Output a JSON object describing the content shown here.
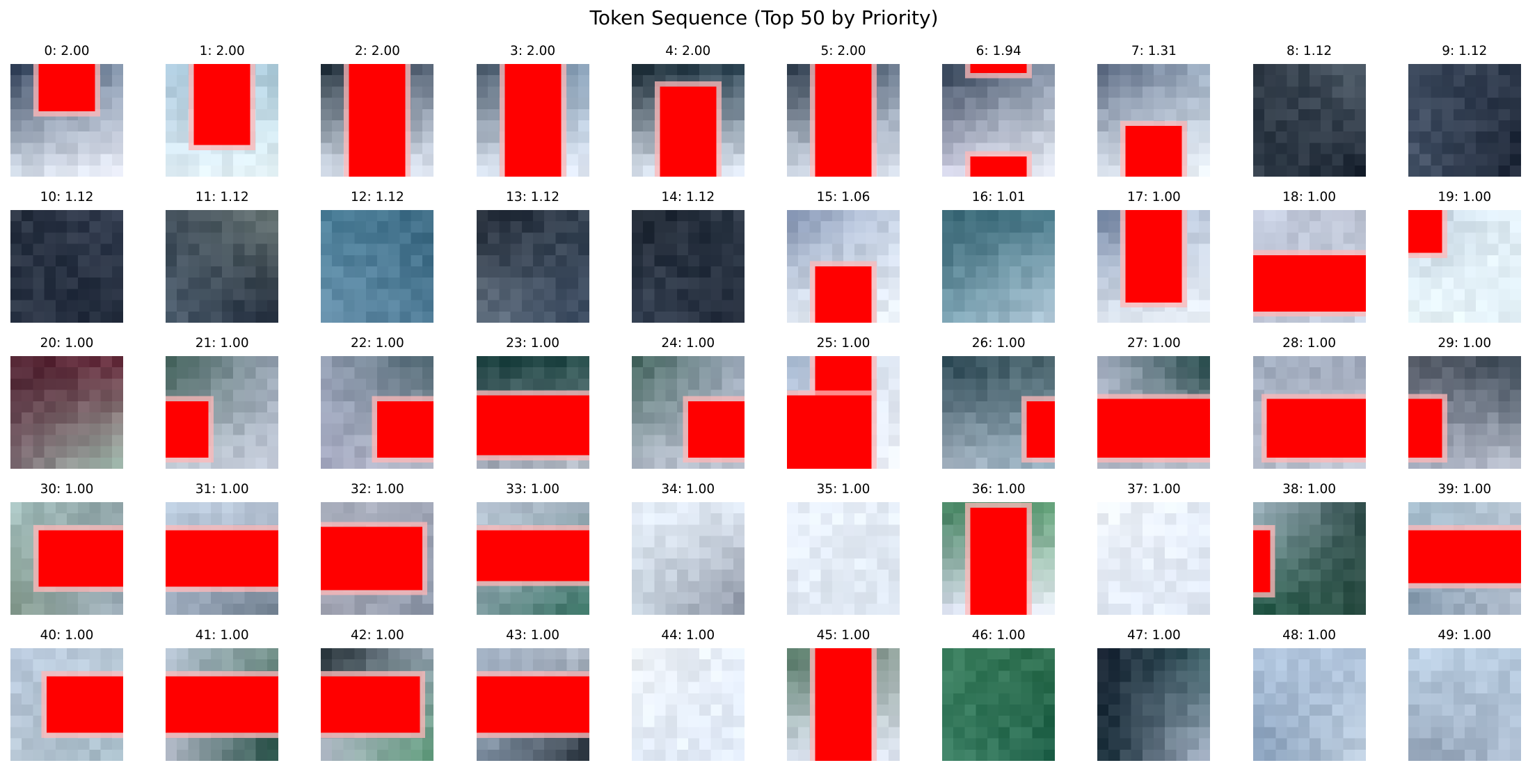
{
  "figure": {
    "title": "Token Sequence (Top 50 by Priority)"
  },
  "tokens": [
    {
      "label": "0: 2.00",
      "bg": [
        "#2f3e57",
        "#7d8fa6",
        "#d8e2ee",
        "#eef0fa"
      ],
      "overlay": [
        [
          0.25,
          0,
          0.75,
          0.42
        ]
      ]
    },
    {
      "label": "1: 2.00",
      "bg": [
        "#a8c6da",
        "#a8c8d8",
        "#e0eef6",
        "#eaf8fb"
      ],
      "overlay": [
        [
          0.25,
          0,
          0.75,
          0.72
        ]
      ]
    },
    {
      "label": "2: 2.00",
      "bg": [
        "#1c2a35",
        "#59677a",
        "#dde6f3",
        "#e7eefa"
      ],
      "overlay": [
        [
          0.25,
          0,
          0.75,
          1
        ]
      ]
    },
    {
      "label": "3: 2.00",
      "bg": [
        "#3b4b5c",
        "#8fa8c0",
        "#dde6f3",
        "#e7eefa"
      ],
      "overlay": [
        [
          0.25,
          0,
          0.75,
          1
        ]
      ]
    },
    {
      "label": "4: 2.00",
      "bg": [
        "#15252f",
        "#2e4656",
        "#dbe4f0",
        "#e7eefa"
      ],
      "overlay": [
        [
          0.25,
          0.2,
          0.75,
          1
        ]
      ]
    },
    {
      "label": "5: 2.00",
      "bg": [
        "#223040",
        "#6c7c90",
        "#dde6f3",
        "#e7eefa"
      ],
      "overlay": [
        [
          0.25,
          0,
          0.75,
          1
        ]
      ]
    },
    {
      "label": "6: 1.94",
      "bg": [
        "#2a3a4e",
        "#8896ab",
        "#dcdcf0",
        "#eef2fa"
      ],
      "overlay": [
        [
          0.25,
          0,
          0.75,
          0.08
        ],
        [
          0.25,
          0.82,
          0.75,
          1
        ]
      ]
    },
    {
      "label": "7: 1.31",
      "bg": [
        "#56657e",
        "#9eafc4",
        "#e0e8f3",
        "#eef4fa"
      ],
      "overlay": [
        [
          0.25,
          0.55,
          0.75,
          1
        ]
      ]
    },
    {
      "label": "8: 1.12",
      "bg": [
        "#2a3440",
        "#54626f",
        "#2f3b48",
        "#1a2330"
      ],
      "overlay": []
    },
    {
      "label": "9: 1.12",
      "bg": [
        "#3f4c60",
        "#2c3749",
        "#48566b",
        "#1d2636"
      ],
      "overlay": []
    },
    {
      "label": "10: 1.12",
      "bg": [
        "#27303f",
        "#353f52",
        "#2b3546",
        "#1f2838"
      ],
      "overlay": []
    },
    {
      "label": "11: 1.12",
      "bg": [
        "#3b4854",
        "#6c7a78",
        "#4f6070",
        "#1c2636"
      ],
      "overlay": []
    },
    {
      "label": "12: 1.12",
      "bg": [
        "#4a7e98",
        "#3c6a83",
        "#6c95b0",
        "#4d7a95"
      ],
      "overlay": []
    },
    {
      "label": "13: 1.12",
      "bg": [
        "#1c2430",
        "#374453",
        "#6b7a8a",
        "#3a4a60"
      ],
      "overlay": []
    },
    {
      "label": "14: 1.12",
      "bg": [
        "#1d2530",
        "#2b3645",
        "#3a4658",
        "#222b3a"
      ],
      "overlay": []
    },
    {
      "label": "15: 1.06",
      "bg": [
        "#8091b0",
        "#c8d4e6",
        "#e6eef8",
        "#eef4fb"
      ],
      "overlay": [
        [
          0.25,
          0.5,
          0.75,
          1
        ]
      ]
    },
    {
      "label": "16: 1.01",
      "bg": [
        "#2f5d6b",
        "#4c7e8e",
        "#7aa2b2",
        "#b8cede"
      ],
      "overlay": []
    },
    {
      "label": "17: 1.00",
      "bg": [
        "#6c7f9e",
        "#c4d0e2",
        "#e4ecf6",
        "#eef4fb"
      ],
      "overlay": [
        [
          0.25,
          0,
          0.75,
          0.82
        ]
      ]
    },
    {
      "label": "18: 1.00",
      "bg": [
        "#c7cfe2",
        "#b9bfcf",
        "#bcc2d2",
        "#c9d4e4"
      ],
      "overlay": [
        [
          0,
          0.4,
          1,
          0.9
        ]
      ]
    },
    {
      "label": "19: 1.00",
      "bg": [
        "#bfd0df",
        "#e3f0f7",
        "#eaf6fa",
        "#e5f3fa"
      ],
      "overlay": [
        [
          0,
          0,
          0.3,
          0.38
        ]
      ]
    },
    {
      "label": "20: 1.00",
      "bg": [
        "#4c1d2c",
        "#66293a",
        "#7e6c74",
        "#a6c4b6"
      ],
      "overlay": []
    },
    {
      "label": "21: 1.00",
      "bg": [
        "#36574f",
        "#9aa6b6",
        "#c9d1dd",
        "#c1c8d6"
      ],
      "overlay": [
        [
          0,
          0.4,
          0.38,
          0.9
        ]
      ]
    },
    {
      "label": "22: 1.00",
      "bg": [
        "#99a4b8",
        "#445d68",
        "#a4a8c0",
        "#c2c6d4"
      ],
      "overlay": [
        [
          0.5,
          0.4,
          1,
          0.9
        ]
      ]
    },
    {
      "label": "23: 1.00",
      "bg": [
        "#163c3b",
        "#1f4744",
        "#a4a9b8",
        "#c1c7d2"
      ],
      "overlay": [
        [
          0,
          0.35,
          1,
          0.88
        ]
      ]
    },
    {
      "label": "24: 1.00",
      "bg": [
        "#3e6158",
        "#99a6b8",
        "#b3bcca",
        "#c5cbd8"
      ],
      "overlay": [
        [
          0.5,
          0.4,
          1,
          0.9
        ]
      ]
    },
    {
      "label": "25: 1.00",
      "bg": [
        "#a3b6cf",
        "#e0e8f3",
        "#e8eefb",
        "#eef2fa"
      ],
      "overlay": [
        [
          0.25,
          0,
          0.75,
          0.35
        ],
        [
          0,
          0.35,
          0.75,
          1
        ]
      ]
    },
    {
      "label": "26: 1.00",
      "bg": [
        "#23404c",
        "#4e6870",
        "#a7b5c3",
        "#9ab4c4"
      ],
      "overlay": [
        [
          0.75,
          0.4,
          1,
          0.9
        ]
      ]
    },
    {
      "label": "27: 1.00",
      "bg": [
        "#aeb8cb",
        "#1a4040",
        "#a7adbc",
        "#c2c8d4"
      ],
      "overlay": [
        [
          0,
          0.38,
          1,
          0.9
        ]
      ]
    },
    {
      "label": "28: 1.00",
      "bg": [
        "#a2aec0",
        "#a0a9bc",
        "#b5bccb",
        "#c4cad6"
      ],
      "overlay": [
        [
          0.12,
          0.38,
          1,
          0.9
        ]
      ]
    },
    {
      "label": "29: 1.00",
      "bg": [
        "#575c68",
        "#313f4c",
        "#a9b0c2",
        "#c0c6d4"
      ],
      "overlay": [
        [
          0,
          0.38,
          0.3,
          0.9
        ]
      ]
    },
    {
      "label": "30: 1.00",
      "bg": [
        "#a6c2c0",
        "#8ea2a5",
        "#869c8e",
        "#a1b1be"
      ],
      "overlay": [
        [
          0.25,
          0.25,
          1,
          0.75
        ]
      ]
    },
    {
      "label": "31: 1.00",
      "bg": [
        "#bfd0e2",
        "#b7c3d4",
        "#a7b4c6",
        "#6c7c8c"
      ],
      "overlay": [
        [
          0,
          0.25,
          1,
          0.75
        ]
      ]
    },
    {
      "label": "32: 1.00",
      "bg": [
        "#aeb4c2",
        "#9ea4b4",
        "#a4a6b4",
        "#8c96a8"
      ],
      "overlay": [
        [
          0,
          0.22,
          0.9,
          0.78
        ]
      ]
    },
    {
      "label": "33: 1.00",
      "bg": [
        "#bcc8d8",
        "#a6b4c2",
        "#7e9ca0",
        "#2f6c5c"
      ],
      "overlay": [
        [
          0,
          0.25,
          1,
          0.7
        ]
      ]
    },
    {
      "label": "34: 1.00",
      "bg": [
        "#e8f0fa",
        "#dfe8f3",
        "#c8d4df",
        "#8890a0"
      ],
      "overlay": []
    },
    {
      "label": "35: 1.00",
      "bg": [
        "#eaf1fb",
        "#e6eef8",
        "#e2eaf5",
        "#dde6f1"
      ],
      "overlay": []
    },
    {
      "label": "36: 1.00",
      "bg": [
        "#3b7b58",
        "#5a9a70",
        "#e0e4f4",
        "#eef0fa"
      ],
      "overlay": [
        [
          0.25,
          0.05,
          0.75,
          1
        ]
      ]
    },
    {
      "label": "37: 1.00",
      "bg": [
        "#eef2f8",
        "#e6eef9",
        "#e2eaf6",
        "#dfe7f3"
      ],
      "overlay": []
    },
    {
      "label": "38: 1.00",
      "bg": [
        "#acbfcc",
        "#2d4a48",
        "#245a48",
        "#2c4e44"
      ],
      "overlay": [
        [
          0,
          0.25,
          0.15,
          0.8
        ]
      ]
    },
    {
      "label": "39: 1.00",
      "bg": [
        "#a8c0d0",
        "#b6c4d2",
        "#7f94a8",
        "#b0bccc"
      ],
      "overlay": [
        [
          0,
          0.25,
          1,
          0.72
        ]
      ]
    },
    {
      "label": "40: 1.00",
      "bg": [
        "#b8c8dc",
        "#c0d0de",
        "#b7c6d4",
        "#a6bcc8"
      ],
      "overlay": [
        [
          0.32,
          0.25,
          1,
          0.75
        ]
      ]
    },
    {
      "label": "41: 1.00",
      "bg": [
        "#b4c2d2",
        "#6e8c84",
        "#b4bac8",
        "#1f4a40"
      ],
      "overlay": [
        [
          0,
          0.25,
          1,
          0.75
        ]
      ]
    },
    {
      "label": "42: 1.00",
      "bg": [
        "#1e2a30",
        "#9aa7b6",
        "#bcc4d2",
        "#5e9c7a"
      ],
      "overlay": [
        [
          0,
          0.25,
          0.88,
          0.75
        ]
      ]
    },
    {
      "label": "43: 1.00",
      "bg": [
        "#aebdd0",
        "#b8c2d0",
        "#8596a8",
        "#1c2630"
      ],
      "overlay": [
        [
          0,
          0.25,
          1,
          0.75
        ]
      ]
    },
    {
      "label": "44: 1.00",
      "bg": [
        "#eef2f6",
        "#e6eefa",
        "#e4edf9",
        "#e2ebf8"
      ],
      "overlay": []
    },
    {
      "label": "45: 1.00",
      "bg": [
        "#4f7460",
        "#8e9e98",
        "#dde4f2",
        "#e7eefa"
      ],
      "overlay": [
        [
          0.25,
          0,
          0.75,
          1
        ]
      ]
    },
    {
      "label": "46: 1.00",
      "bg": [
        "#3c8060",
        "#2f7050",
        "#3c8064",
        "#1e6048"
      ],
      "overlay": []
    },
    {
      "label": "47: 1.00",
      "bg": [
        "#1a2434",
        "#355a60",
        "#0f2530",
        "#b4c0d4"
      ],
      "overlay": []
    },
    {
      "label": "48: 1.00",
      "bg": [
        "#b8cce4",
        "#a8bcd4",
        "#8098b4",
        "#c4d4e4"
      ],
      "overlay": []
    },
    {
      "label": "49: 1.00",
      "bg": [
        "#c0d4e8",
        "#b4c8dc",
        "#8c9cb0",
        "#b0c0d4"
      ],
      "overlay": []
    }
  ]
}
